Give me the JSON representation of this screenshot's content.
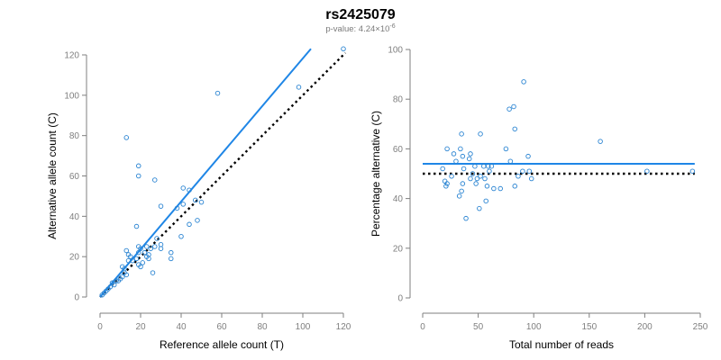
{
  "title": "rs2425079",
  "subtitle": {
    "prefix": "p-value: 4.24×10",
    "exponent": "-6"
  },
  "colors": {
    "points": "#2a84d2",
    "fit_line": "#1f86e6",
    "reference_line": "#000000",
    "axis": "#7f7f7f",
    "tick_text": "#7f7f7f"
  },
  "chart_data": [
    {
      "type": "scatter",
      "xlabel": "Reference allele count (T)",
      "ylabel": "Alternative allele count (C)",
      "xlim": [
        0,
        120
      ],
      "ylim": [
        0,
        120
      ],
      "xticks": [
        0,
        20,
        40,
        60,
        80,
        100,
        120
      ],
      "yticks": [
        0,
        20,
        40,
        60,
        80,
        100,
        120
      ],
      "grid": false,
      "fit_line": {
        "x": [
          0,
          104
        ],
        "y": [
          0,
          123
        ],
        "style": "solid"
      },
      "reference_line": {
        "x": [
          0,
          121
        ],
        "y": [
          0,
          121
        ],
        "style": "dotted"
      },
      "points": [
        [
          13,
          79
        ],
        [
          19,
          65
        ],
        [
          19,
          60
        ],
        [
          58,
          101
        ],
        [
          98,
          104
        ],
        [
          120,
          123
        ],
        [
          27,
          58
        ],
        [
          18,
          35
        ],
        [
          30,
          45
        ],
        [
          41,
          54
        ],
        [
          44,
          53
        ],
        [
          50,
          47
        ],
        [
          47,
          48
        ],
        [
          38,
          44
        ],
        [
          41,
          46
        ],
        [
          48,
          38
        ],
        [
          40,
          30
        ],
        [
          44,
          36
        ],
        [
          35,
          22
        ],
        [
          35,
          19
        ],
        [
          26,
          12
        ],
        [
          30,
          24
        ],
        [
          30,
          26
        ],
        [
          27,
          25
        ],
        [
          28,
          29
        ],
        [
          25,
          24
        ],
        [
          19,
          25
        ],
        [
          19,
          22
        ],
        [
          20,
          24
        ],
        [
          23,
          25
        ],
        [
          22,
          22
        ],
        [
          23,
          20
        ],
        [
          24,
          21
        ],
        [
          24,
          19
        ],
        [
          18,
          19
        ],
        [
          20,
          15
        ],
        [
          19,
          16
        ],
        [
          21,
          17
        ],
        [
          16,
          18
        ],
        [
          15,
          20
        ],
        [
          14,
          18
        ],
        [
          13,
          23
        ],
        [
          14,
          21
        ],
        [
          11,
          15
        ],
        [
          12,
          14
        ],
        [
          12,
          12
        ],
        [
          13,
          11
        ],
        [
          11,
          10
        ],
        [
          10,
          9
        ],
        [
          9,
          8
        ],
        [
          8,
          8
        ],
        [
          7,
          6
        ],
        [
          6,
          7
        ],
        [
          5,
          5
        ],
        [
          4,
          4
        ],
        [
          3,
          3
        ],
        [
          2,
          2
        ],
        [
          1,
          1
        ]
      ]
    },
    {
      "type": "scatter",
      "xlabel": "Total number of reads",
      "ylabel": "Percentage alternative (C)",
      "xlim": [
        0,
        250
      ],
      "ylim": [
        0,
        100
      ],
      "xticks": [
        0,
        50,
        100,
        150,
        200,
        250
      ],
      "yticks": [
        0,
        20,
        40,
        60,
        80,
        100
      ],
      "grid": false,
      "fit_line": {
        "x": [
          0,
          245
        ],
        "y": [
          54,
          54
        ],
        "style": "solid"
      },
      "reference_line": {
        "x": [
          0,
          245
        ],
        "y": [
          50,
          50
        ],
        "style": "dotted"
      },
      "points": [
        [
          91,
          87
        ],
        [
          82,
          77
        ],
        [
          78,
          76
        ],
        [
          83,
          68
        ],
        [
          52,
          66
        ],
        [
          35,
          66
        ],
        [
          160,
          63
        ],
        [
          75,
          60
        ],
        [
          22,
          60
        ],
        [
          34,
          60
        ],
        [
          28,
          58
        ],
        [
          43,
          58
        ],
        [
          36,
          57
        ],
        [
          95,
          57
        ],
        [
          42,
          56
        ],
        [
          30,
          55
        ],
        [
          79,
          55
        ],
        [
          55,
          53
        ],
        [
          47,
          53
        ],
        [
          59,
          53
        ],
        [
          62,
          53
        ],
        [
          37,
          52
        ],
        [
          18,
          52
        ],
        [
          60,
          51
        ],
        [
          90,
          51
        ],
        [
          96,
          51
        ],
        [
          202,
          51
        ],
        [
          243,
          51
        ],
        [
          45,
          50
        ],
        [
          52,
          49
        ],
        [
          43,
          48
        ],
        [
          49,
          48
        ],
        [
          56,
          48
        ],
        [
          98,
          48
        ],
        [
          20,
          47
        ],
        [
          22,
          46
        ],
        [
          36,
          46
        ],
        [
          48,
          46
        ],
        [
          58,
          45
        ],
        [
          21,
          45
        ],
        [
          83,
          45
        ],
        [
          70,
          44
        ],
        [
          35,
          43
        ],
        [
          33,
          41
        ],
        [
          57,
          39
        ],
        [
          51,
          36
        ],
        [
          39,
          32
        ],
        [
          64,
          44
        ],
        [
          26,
          49
        ],
        [
          86,
          49
        ]
      ]
    }
  ]
}
